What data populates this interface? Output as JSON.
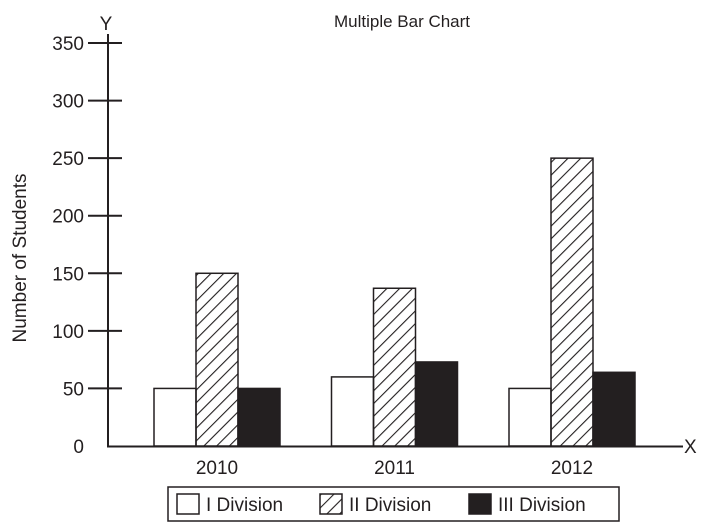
{
  "chart_data": {
    "type": "bar",
    "title": "Multiple Bar Chart",
    "ylabel": "Number of Students",
    "y_axis_letter": "Y",
    "x_axis_letter": "X",
    "categories": [
      "2010",
      "2011",
      "2012"
    ],
    "series": [
      {
        "name": "I Division",
        "values": [
          50,
          60,
          50
        ],
        "fill": "white"
      },
      {
        "name": "II Division",
        "values": [
          150,
          137,
          250
        ],
        "fill": "hatch"
      },
      {
        "name": "III Division",
        "values": [
          50,
          73,
          64
        ],
        "fill": "black"
      }
    ],
    "ylim": [
      0,
      350
    ],
    "yticks": [
      50,
      100,
      150,
      200,
      250,
      300,
      350
    ],
    "y_zero_label": "0",
    "grid": false,
    "legend_position": "bottom",
    "colors": {
      "ink": "#231f20",
      "background": "#ffffff"
    }
  }
}
